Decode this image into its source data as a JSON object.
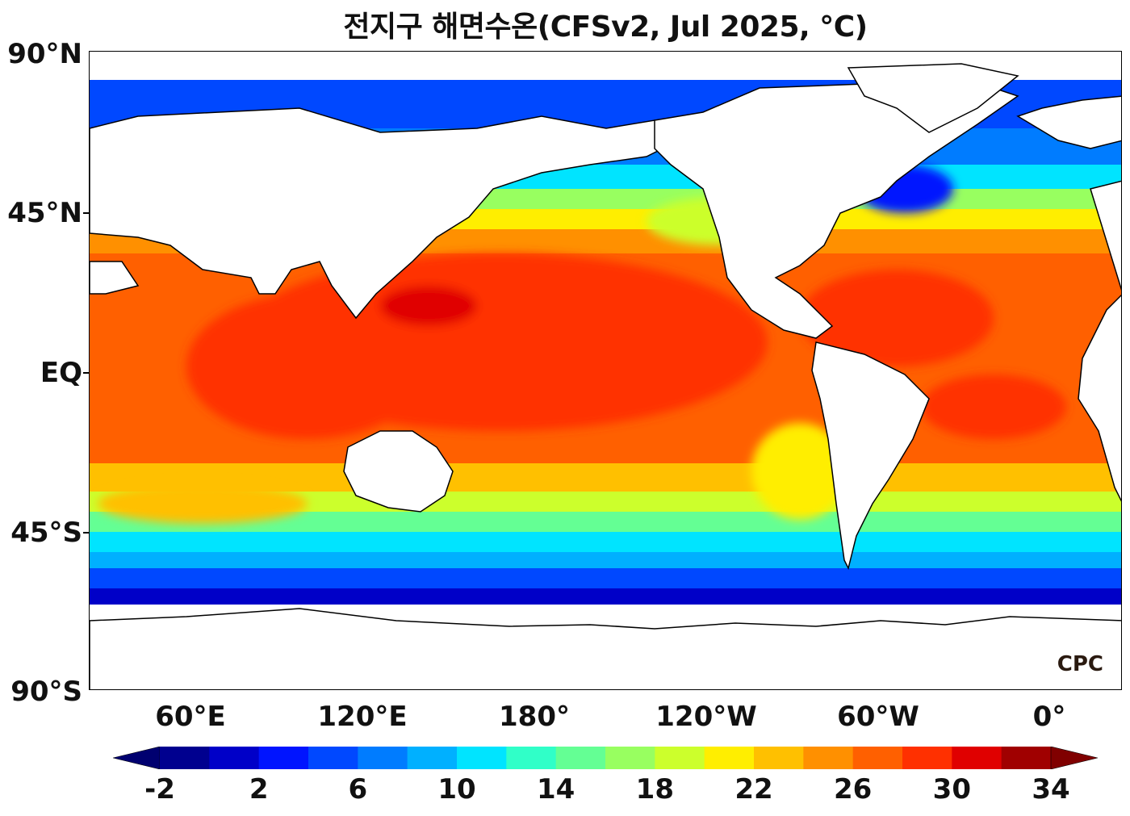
{
  "title": "전지구 해면수온(CFSv2, Jul 2025, °C)",
  "lat_labels": [
    "90°N",
    "45°N",
    "EQ",
    "45°S",
    "90°S"
  ],
  "lon_labels": [
    "60°E",
    "120°E",
    "180°",
    "120°W",
    "60°W",
    "0°"
  ],
  "colorbar": {
    "tick_labels": [
      "-2",
      "2",
      "6",
      "10",
      "14",
      "18",
      "22",
      "26",
      "30",
      "34"
    ],
    "min": -2,
    "max": 34,
    "step": 2,
    "extend": "both",
    "colors": [
      "#00008f",
      "#0000c8",
      "#0014ff",
      "#0048ff",
      "#007cff",
      "#00b0ff",
      "#00e4ff",
      "#30ffc8",
      "#64ff94",
      "#98ff60",
      "#ccff2c",
      "#ffee00",
      "#ffc000",
      "#ff9000",
      "#ff6000",
      "#ff3000",
      "#e00000",
      "#a00000"
    ],
    "under_color": "#000070",
    "over_color": "#800000"
  },
  "logo": "CPC",
  "colors": {
    "land": "#ffffff",
    "coast": "#000000"
  }
}
